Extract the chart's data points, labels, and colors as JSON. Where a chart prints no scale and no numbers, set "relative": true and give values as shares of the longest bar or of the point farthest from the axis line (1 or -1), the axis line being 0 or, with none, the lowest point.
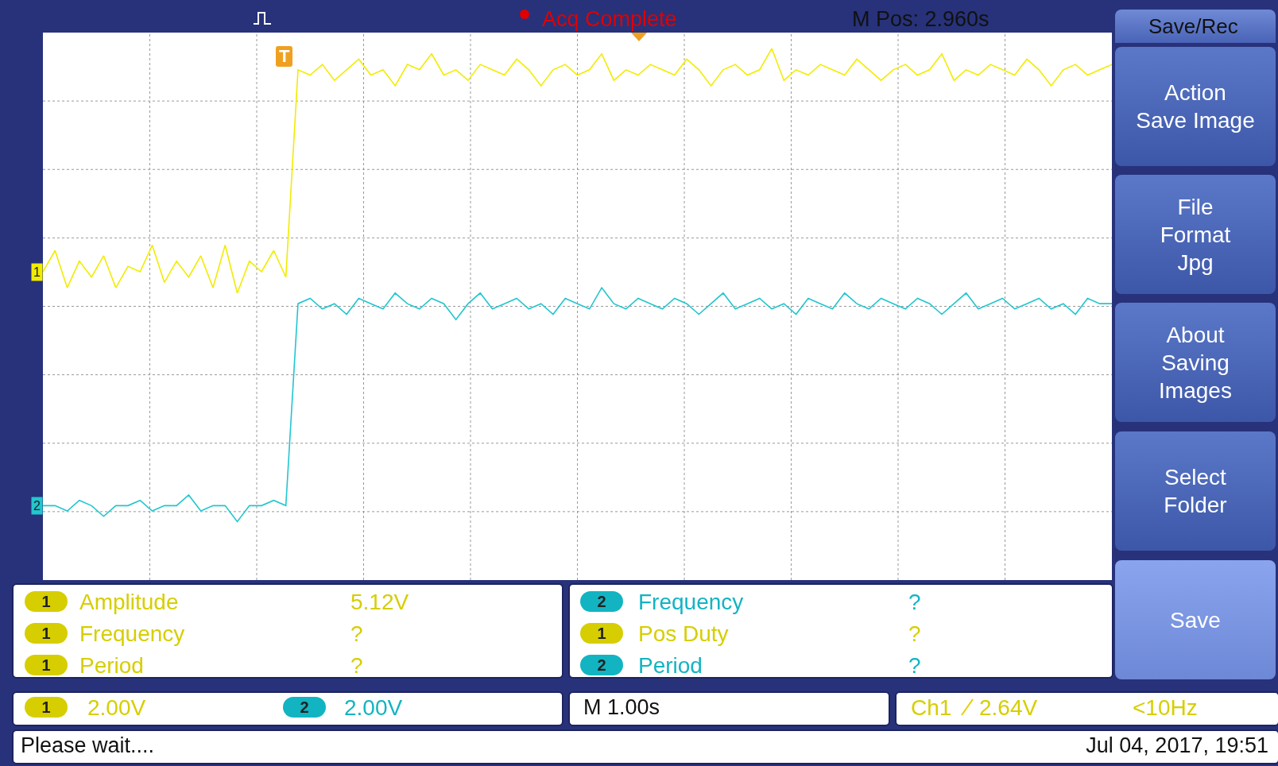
{
  "chart_data": {
    "type": "line",
    "relative": true,
    "grid": true,
    "categories": [
      null,
      null,
      null,
      null,
      null,
      null,
      null,
      null,
      null,
      null,
      null,
      null,
      null,
      null,
      null,
      null,
      null,
      null,
      null,
      null,
      null,
      null,
      null,
      null,
      null,
      null,
      null,
      null,
      null,
      null,
      null,
      null,
      null,
      null,
      null,
      null,
      null,
      null,
      null,
      null,
      null,
      null,
      null,
      null,
      null,
      null,
      null,
      null,
      null,
      null,
      null,
      null,
      null,
      null,
      null,
      null,
      null,
      null,
      null,
      null,
      null,
      null,
      null,
      null,
      null,
      null,
      null,
      null,
      null,
      null,
      null,
      null,
      null,
      null,
      null,
      null,
      null,
      null,
      null,
      null,
      null,
      null,
      null,
      null,
      null,
      null,
      null,
      null,
      null
    ],
    "series": [
      {
        "name": "1",
        "color": "#f2ec00",
        "values": [
          0.58,
          0.62,
          0.55,
          0.6,
          0.57,
          0.61,
          0.55,
          0.59,
          0.58,
          0.63,
          0.56,
          0.6,
          0.57,
          0.61,
          0.55,
          0.63,
          0.54,
          0.6,
          0.58,
          0.62,
          0.57,
          0.96,
          0.95,
          0.97,
          0.94,
          0.96,
          0.98,
          0.95,
          0.96,
          0.93,
          0.97,
          0.96,
          0.99,
          0.95,
          0.96,
          0.94,
          0.97,
          0.96,
          0.95,
          0.98,
          0.96,
          0.93,
          0.96,
          0.97,
          0.95,
          0.96,
          0.99,
          0.94,
          0.96,
          0.95,
          0.97,
          0.96,
          0.95,
          0.98,
          0.96,
          0.93,
          0.96,
          0.97,
          0.95,
          0.96,
          1,
          0.94,
          0.96,
          0.95,
          0.97,
          0.96,
          0.95,
          0.98,
          0.96,
          0.94,
          0.96,
          0.97,
          0.95,
          0.96,
          0.99,
          0.94,
          0.96,
          0.95,
          0.97,
          0.96,
          0.95,
          0.98,
          0.96,
          0.93,
          0.96,
          0.97,
          0.95,
          0.96,
          0.97
        ]
      },
      {
        "name": "2",
        "color": "#22c6cf",
        "values": [
          0.14,
          0.14,
          0.13,
          0.15,
          0.14,
          0.12,
          0.14,
          0.14,
          0.15,
          0.13,
          0.14,
          0.14,
          0.16,
          0.13,
          0.14,
          0.14,
          0.11,
          0.14,
          0.14,
          0.15,
          0.14,
          0.52,
          0.53,
          0.51,
          0.52,
          0.5,
          0.53,
          0.52,
          0.51,
          0.54,
          0.52,
          0.51,
          0.53,
          0.52,
          0.49,
          0.52,
          0.54,
          0.51,
          0.52,
          0.53,
          0.51,
          0.52,
          0.5,
          0.53,
          0.52,
          0.51,
          0.55,
          0.52,
          0.51,
          0.53,
          0.52,
          0.51,
          0.53,
          0.52,
          0.5,
          0.52,
          0.54,
          0.51,
          0.52,
          0.53,
          0.51,
          0.52,
          0.5,
          0.53,
          0.52,
          0.51,
          0.54,
          0.52,
          0.51,
          0.53,
          0.52,
          0.51,
          0.53,
          0.52,
          0.5,
          0.52,
          0.54,
          0.51,
          0.52,
          0.53,
          0.51,
          0.52,
          0.53,
          0.51,
          0.52,
          0.5,
          0.53,
          0.52,
          0.52
        ]
      }
    ],
    "annotations": [
      "Acq Complete",
      "M Pos: 2.960s",
      "Save/Rec",
      "Action\nSave Image",
      "File\nFormat\nJpg",
      "About\nSaving\nImages",
      "Select\nFolder",
      "Save",
      "1",
      "Amplitude",
      "5.12V",
      "1",
      "Frequency",
      "?",
      "1",
      "Period",
      "?",
      "2",
      "Frequency",
      "?",
      "1",
      "Pos Duty",
      "?",
      "2",
      "Period",
      "?",
      "1",
      "2.00V",
      "2",
      "2.00V",
      "M 1.00s",
      "Ch1",
      "2.64V",
      "<10Hz",
      "Please wait....",
      "Jul 04, 2017, 19:51",
      "T"
    ]
  }
}
